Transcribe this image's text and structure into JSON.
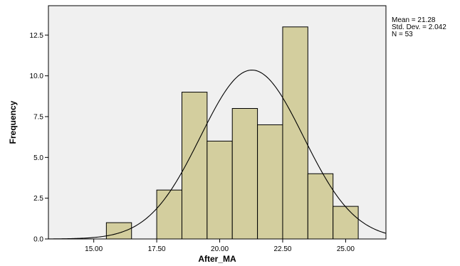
{
  "chart_data": {
    "type": "bar",
    "subtype": "histogram",
    "xlabel": "After_MA",
    "ylabel": "Frequency",
    "bin_width": 1,
    "bins": [
      {
        "x0": 15.5,
        "x1": 16.5,
        "value": 1
      },
      {
        "x0": 17.5,
        "x1": 18.5,
        "value": 3
      },
      {
        "x0": 18.5,
        "x1": 19.5,
        "value": 9
      },
      {
        "x0": 19.5,
        "x1": 20.5,
        "value": 6
      },
      {
        "x0": 20.5,
        "x1": 21.5,
        "value": 8
      },
      {
        "x0": 21.5,
        "x1": 22.5,
        "value": 7
      },
      {
        "x0": 22.5,
        "x1": 23.5,
        "value": 13
      },
      {
        "x0": 23.5,
        "x1": 24.5,
        "value": 4
      },
      {
        "x0": 24.5,
        "x1": 25.5,
        "value": 2
      }
    ],
    "xlim": [
      13.2,
      26.6
    ],
    "ylim": [
      0,
      14.3
    ],
    "x_ticks": [
      15.0,
      17.5,
      20.0,
      22.5,
      25.0
    ],
    "x_tick_labels": [
      "15.00",
      "17.50",
      "20.00",
      "22.50",
      "25.00"
    ],
    "y_ticks": [
      0,
      2.5,
      5.0,
      7.5,
      10.0,
      12.5
    ],
    "y_tick_labels": [
      "0.0",
      "2.5",
      "5.0",
      "7.5",
      "10.0",
      "12.5"
    ],
    "normal_curve": {
      "mean": 21.28,
      "std_dev": 2.042,
      "n": 53
    },
    "stats_text": [
      "Mean = 21.28",
      "Std. Dev. = 2.042",
      "N = 53"
    ],
    "grid": false,
    "colors": {
      "plot_background": "#f0f0f0",
      "bar_fill": "#d3ce9e",
      "bar_stroke": "#000000",
      "curve": "#000000"
    }
  }
}
